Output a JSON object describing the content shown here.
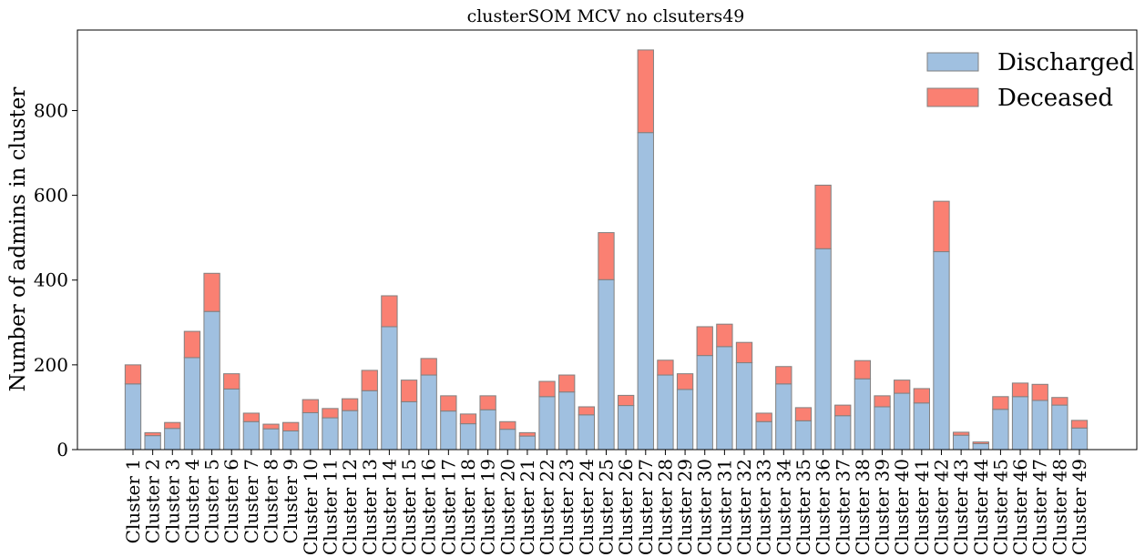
{
  "chart_data": {
    "type": "bar",
    "stacked": true,
    "title": "clusterSOM MCV no clsuters49",
    "xlabel": "",
    "ylabel": "Number of admins in cluster",
    "ylim": [
      0,
      990
    ],
    "yticks": [
      0,
      200,
      400,
      600,
      800
    ],
    "grid": false,
    "legend_position": "top-right",
    "categories": [
      "Cluster 1",
      "Cluster 2",
      "Cluster 3",
      "Cluster 4",
      "Cluster 5",
      "Cluster 6",
      "Cluster 7",
      "Cluster 8",
      "Cluster 9",
      "Cluster 10",
      "Cluster 11",
      "Cluster 12",
      "Cluster 13",
      "Cluster 14",
      "Cluster 15",
      "Cluster 16",
      "Cluster 17",
      "Cluster 18",
      "Cluster 19",
      "Cluster 20",
      "Cluster 21",
      "Cluster 22",
      "Cluster 23",
      "Cluster 24",
      "Cluster 25",
      "Cluster 26",
      "Cluster 27",
      "Cluster 28",
      "Cluster 29",
      "Cluster 30",
      "Cluster 31",
      "Cluster 32",
      "Cluster 33",
      "Cluster 34",
      "Cluster 35",
      "Cluster 36",
      "Cluster 37",
      "Cluster 38",
      "Cluster 39",
      "Cluster 40",
      "Cluster 41",
      "Cluster 42",
      "Cluster 43",
      "Cluster 44",
      "Cluster 45",
      "Cluster 46",
      "Cluster 47",
      "Cluster 48",
      "Cluster 49"
    ],
    "series": [
      {
        "name": "Discharged",
        "color": "#a0c0e0",
        "values": [
          155,
          33,
          50,
          217,
          326,
          143,
          66,
          49,
          44,
          87,
          75,
          92,
          139,
          290,
          113,
          176,
          91,
          61,
          94,
          48,
          32,
          125,
          136,
          82,
          401,
          104,
          748,
          176,
          142,
          222,
          243,
          205,
          66,
          155,
          68,
          474,
          80,
          167,
          101,
          133,
          110,
          467,
          34,
          14,
          95,
          125,
          116,
          105,
          51
        ]
      },
      {
        "name": "Deceased",
        "color": "#fa8072",
        "values": [
          45,
          7,
          14,
          62,
          90,
          36,
          20,
          11,
          20,
          31,
          22,
          28,
          48,
          73,
          51,
          39,
          36,
          23,
          33,
          18,
          8,
          36,
          40,
          19,
          111,
          24,
          195,
          35,
          37,
          68,
          53,
          48,
          20,
          41,
          31,
          150,
          25,
          43,
          26,
          31,
          34,
          119,
          7,
          4,
          30,
          32,
          38,
          18,
          18
        ]
      }
    ]
  }
}
